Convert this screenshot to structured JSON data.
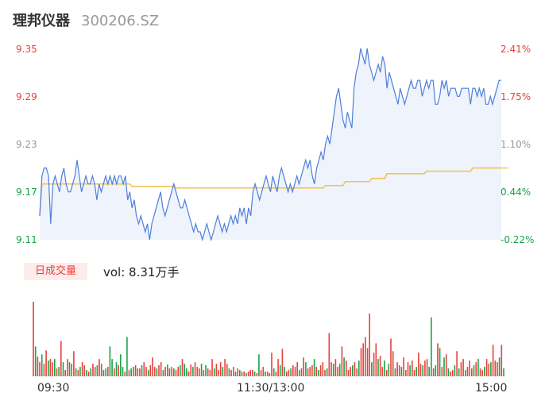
{
  "header": {
    "name": "理邦仪器",
    "code": "300206.SZ"
  },
  "colors": {
    "up": "#e8413a",
    "down": "#1aa34a",
    "neutral": "#999999",
    "price_line": "#4f7fd8",
    "avg_line": "#f2c14e",
    "area_fill": "#eef3fc"
  },
  "volume_tab": {
    "label": "日成交量"
  },
  "volume_text": "vol: 8.31万手",
  "chart_data": [
    {
      "type": "line",
      "name": "intraday-price",
      "y_axis_left": [
        "9.35",
        "9.29",
        "9.23",
        "9.17",
        "9.11"
      ],
      "y_axis_right": [
        "2.41%",
        "1.75%",
        "1.10%",
        "0.44%",
        "-0.22%"
      ],
      "ylim": [
        9.11,
        9.35
      ],
      "prev_close": 9.13,
      "x_labels": [
        "09:30",
        "11:30/13:00",
        "15:00"
      ],
      "price": [
        9.14,
        9.19,
        9.2,
        9.2,
        9.19,
        9.13,
        9.18,
        9.19,
        9.18,
        9.17,
        9.19,
        9.2,
        9.18,
        9.17,
        9.17,
        9.18,
        9.19,
        9.21,
        9.19,
        9.17,
        9.18,
        9.19,
        9.18,
        9.18,
        9.19,
        9.18,
        9.16,
        9.18,
        9.17,
        9.18,
        9.19,
        9.18,
        9.19,
        9.18,
        9.19,
        9.18,
        9.19,
        9.19,
        9.18,
        9.19,
        9.16,
        9.17,
        9.15,
        9.16,
        9.14,
        9.13,
        9.14,
        9.13,
        9.12,
        9.13,
        9.11,
        9.13,
        9.14,
        9.15,
        9.16,
        9.17,
        9.15,
        9.14,
        9.15,
        9.16,
        9.17,
        9.18,
        9.17,
        9.16,
        9.15,
        9.15,
        9.16,
        9.15,
        9.14,
        9.13,
        9.12,
        9.13,
        9.12,
        9.12,
        9.11,
        9.12,
        9.13,
        9.12,
        9.11,
        9.12,
        9.13,
        9.14,
        9.13,
        9.12,
        9.13,
        9.12,
        9.13,
        9.14,
        9.13,
        9.14,
        9.13,
        9.15,
        9.14,
        9.15,
        9.13,
        9.15,
        9.14,
        9.17,
        9.18,
        9.17,
        9.16,
        9.17,
        9.18,
        9.19,
        9.18,
        9.17,
        9.19,
        9.18,
        9.17,
        9.19,
        9.2,
        9.19,
        9.18,
        9.17,
        9.18,
        9.17,
        9.18,
        9.19,
        9.18,
        9.19,
        9.2,
        9.21,
        9.2,
        9.21,
        9.19,
        9.18,
        9.2,
        9.21,
        9.22,
        9.21,
        9.23,
        9.24,
        9.23,
        9.25,
        9.27,
        9.29,
        9.3,
        9.28,
        9.26,
        9.25,
        9.27,
        9.26,
        9.25,
        9.3,
        9.32,
        9.33,
        9.35,
        9.34,
        9.33,
        9.35,
        9.33,
        9.32,
        9.31,
        9.32,
        9.33,
        9.32,
        9.34,
        9.33,
        9.3,
        9.32,
        9.31,
        9.3,
        9.29,
        9.28,
        9.3,
        9.29,
        9.28,
        9.29,
        9.3,
        9.31,
        9.3,
        9.3,
        9.31,
        9.31,
        9.29,
        9.3,
        9.31,
        9.3,
        9.31,
        9.31,
        9.28,
        9.28,
        9.29,
        9.31,
        9.3,
        9.31,
        9.29,
        9.3,
        9.3,
        9.3,
        9.29,
        9.29,
        9.3,
        9.3,
        9.3,
        9.3,
        9.28,
        9.3,
        9.3,
        9.29,
        9.3,
        9.29,
        9.3,
        9.28,
        9.28,
        9.29,
        9.28,
        9.29,
        9.3,
        9.31,
        9.31
      ],
      "avg": [
        9.14,
        9.18,
        9.18,
        9.18,
        9.18,
        9.18,
        9.18,
        9.18,
        9.18,
        9.18,
        9.18,
        9.18,
        9.18,
        9.18,
        9.18,
        9.18,
        9.18,
        9.18,
        9.18,
        9.18,
        9.18,
        9.18,
        9.18,
        9.18,
        9.18,
        9.18,
        9.18,
        9.18,
        9.18,
        9.18,
        9.18,
        9.18,
        9.18,
        9.18,
        9.18,
        9.18,
        9.18,
        9.18,
        9.18,
        9.18,
        9.18,
        9.18,
        9.177,
        9.177,
        9.177,
        9.177,
        9.177,
        9.177,
        9.177,
        9.177,
        9.177,
        9.177,
        9.177,
        9.177,
        9.177,
        9.177,
        9.177,
        9.177,
        9.177,
        9.177,
        9.177,
        9.177,
        9.175,
        9.175,
        9.175,
        9.175,
        9.175,
        9.175,
        9.175,
        9.175,
        9.175,
        9.175,
        9.175,
        9.175,
        9.175,
        9.175,
        9.175,
        9.175,
        9.175,
        9.175,
        9.175,
        9.175,
        9.175,
        9.175,
        9.175,
        9.175,
        9.175,
        9.175,
        9.175,
        9.175,
        9.175,
        9.175,
        9.175,
        9.175,
        9.175,
        9.175,
        9.175,
        9.175,
        9.175,
        9.175,
        9.175,
        9.175,
        9.175,
        9.175,
        9.175,
        9.175,
        9.175,
        9.175,
        9.175,
        9.175,
        9.175,
        9.175,
        9.175,
        9.175,
        9.175,
        9.175,
        9.175,
        9.175,
        9.175,
        9.175,
        9.175,
        9.175,
        9.175,
        9.175,
        9.175,
        9.175,
        9.175,
        9.175,
        9.175,
        9.175,
        9.178,
        9.178,
        9.178,
        9.178,
        9.178,
        9.178,
        9.178,
        9.178,
        9.178,
        9.183,
        9.183,
        9.183,
        9.183,
        9.183,
        9.183,
        9.183,
        9.183,
        9.183,
        9.183,
        9.183,
        9.183,
        9.187,
        9.187,
        9.187,
        9.187,
        9.187,
        9.187,
        9.187,
        9.193,
        9.193,
        9.193,
        9.193,
        9.193,
        9.193,
        9.193,
        9.193,
        9.193,
        9.193,
        9.193,
        9.193,
        9.193,
        9.193,
        9.193,
        9.193,
        9.193,
        9.193,
        9.196,
        9.196,
        9.196,
        9.196,
        9.196,
        9.196,
        9.196,
        9.196,
        9.196,
        9.196,
        9.196,
        9.196,
        9.196,
        9.196,
        9.196,
        9.196,
        9.196,
        9.196,
        9.196,
        9.196,
        9.196,
        9.2,
        9.2,
        9.2,
        9.2,
        9.2,
        9.2,
        9.2,
        9.2,
        9.2,
        9.2,
        9.2,
        9.2,
        9.2,
        9.2,
        9.2,
        9.2,
        9.2
      ]
    },
    {
      "type": "bar",
      "name": "volume",
      "values": [
        95,
        38,
        25,
        18,
        28,
        16,
        33,
        20,
        22,
        18,
        22,
        10,
        12,
        45,
        18,
        8,
        22,
        18,
        16,
        32,
        10,
        8,
        12,
        18,
        14,
        8,
        6,
        10,
        16,
        12,
        14,
        22,
        16,
        8,
        10,
        12,
        38,
        22,
        10,
        18,
        14,
        28,
        12,
        6,
        50,
        8,
        10,
        12,
        14,
        10,
        10,
        14,
        18,
        12,
        8,
        14,
        24,
        12,
        10,
        14,
        18,
        8,
        12,
        15,
        10,
        12,
        10,
        8,
        12,
        14,
        22,
        16,
        10,
        6,
        15,
        12,
        18,
        12,
        10,
        16,
        8,
        14,
        10,
        8,
        22,
        10,
        16,
        8,
        18,
        12,
        22,
        16,
        10,
        8,
        12,
        6,
        10,
        8,
        6,
        6,
        4,
        6,
        8,
        8,
        6,
        4,
        28,
        8,
        12,
        6,
        6,
        4,
        30,
        10,
        6,
        22,
        14,
        35,
        12,
        6,
        8,
        10,
        14,
        12,
        18,
        8,
        10,
        24,
        18,
        10,
        12,
        14,
        22,
        12,
        8,
        14,
        18,
        8,
        10,
        55,
        18,
        16,
        22,
        12,
        16,
        38,
        24,
        20,
        8,
        12,
        14,
        18,
        10,
        20,
        36,
        42,
        50,
        36,
        80,
        18,
        30,
        42,
        22,
        26,
        12,
        20,
        8,
        16,
        48,
        32,
        10,
        18,
        14,
        12,
        24,
        8,
        18,
        14,
        20,
        8,
        12,
        30,
        16,
        14,
        20,
        22,
        12,
        75,
        10,
        14,
        42,
        36,
        12,
        24,
        28,
        10,
        6,
        8,
        14,
        32,
        10,
        18,
        22,
        8,
        12,
        20,
        10,
        14,
        18,
        22,
        10,
        8,
        12,
        22,
        16,
        18,
        40,
        20,
        18,
        24,
        40,
        10
      ],
      "colors": [
        "u",
        "d",
        "u",
        "u",
        "d",
        "u",
        "u",
        "d",
        "u",
        "u",
        "d",
        "u",
        "d",
        "u",
        "d",
        "u",
        "u",
        "d",
        "u",
        "u",
        "d",
        "u",
        "d",
        "u",
        "u",
        "d",
        "u",
        "d",
        "u",
        "u",
        "d",
        "u",
        "u",
        "d",
        "d",
        "u",
        "d",
        "d",
        "u",
        "d",
        "u",
        "d",
        "d",
        "u",
        "d",
        "u",
        "d",
        "d",
        "u",
        "u",
        "u",
        "d",
        "u",
        "u",
        "d",
        "u",
        "u",
        "u",
        "d",
        "u",
        "u",
        "d",
        "u",
        "d",
        "u",
        "u",
        "d",
        "u",
        "u",
        "d",
        "u",
        "d",
        "d",
        "u",
        "u",
        "d",
        "u",
        "u",
        "u",
        "d",
        "u",
        "d",
        "u",
        "u",
        "u",
        "d",
        "u",
        "u",
        "u",
        "d",
        "u",
        "u",
        "d",
        "u",
        "u",
        "d",
        "u",
        "d",
        "u",
        "u",
        "d",
        "u",
        "u",
        "u",
        "d",
        "u",
        "d",
        "u",
        "u",
        "d",
        "u",
        "u",
        "u",
        "d",
        "u",
        "u",
        "d",
        "u",
        "d",
        "u",
        "u",
        "d",
        "u",
        "u",
        "u",
        "d",
        "u",
        "u",
        "d",
        "u",
        "u",
        "u",
        "d",
        "u",
        "d",
        "u",
        "u",
        "u",
        "d",
        "u",
        "u",
        "d",
        "u",
        "u",
        "d",
        "u",
        "d",
        "u",
        "u",
        "u",
        "d",
        "u",
        "u",
        "d",
        "u",
        "u",
        "u",
        "u",
        "u",
        "d",
        "u",
        "u",
        "d",
        "u",
        "u",
        "d",
        "u",
        "d",
        "u",
        "u",
        "d",
        "u",
        "u",
        "d",
        "u",
        "u",
        "u",
        "d",
        "u",
        "u",
        "d",
        "u",
        "u",
        "d",
        "u",
        "u",
        "d",
        "d",
        "u",
        "d",
        "u",
        "d",
        "u",
        "d",
        "u",
        "d",
        "u",
        "u",
        "d",
        "u",
        "d",
        "u",
        "u",
        "d",
        "u",
        "u",
        "u",
        "d",
        "u",
        "d",
        "u",
        "u",
        "d",
        "u",
        "u",
        "d",
        "u",
        "u",
        "u",
        "d",
        "u",
        "d",
        "u",
        "u",
        "u",
        "d",
        "u",
        "u",
        "u",
        "u",
        "d",
        "u",
        "u",
        "u",
        "u"
      ]
    }
  ]
}
